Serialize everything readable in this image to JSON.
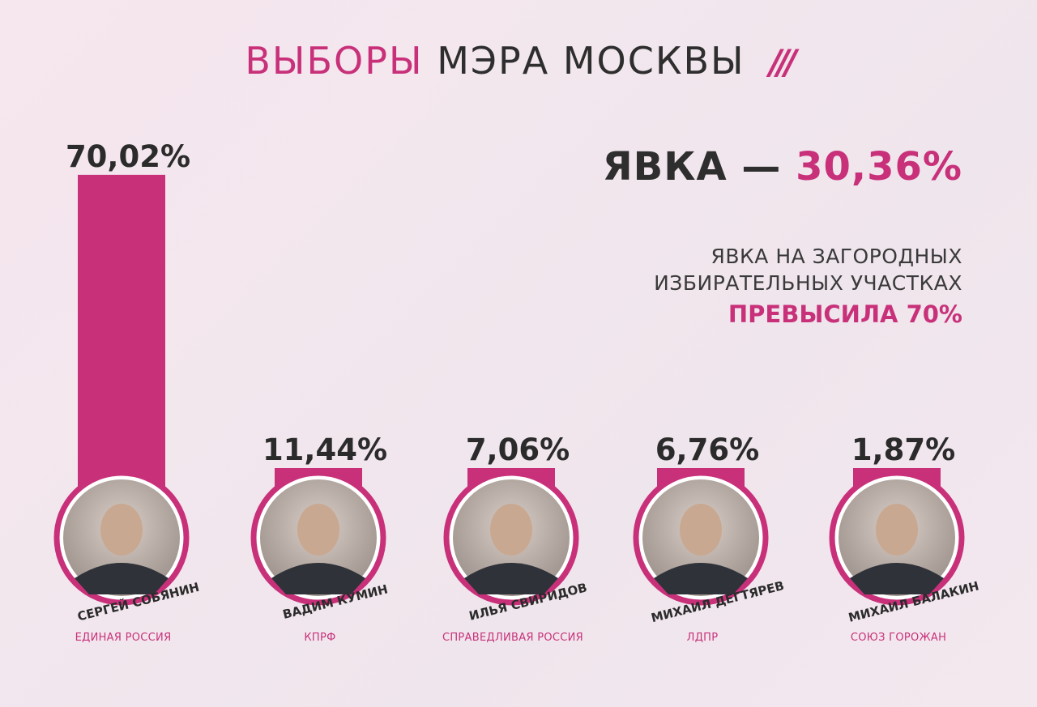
{
  "header": {
    "title_part1": "ВЫБОРЫ",
    "title_part2": "МЭРА МОСКВЫ",
    "logo_slashes": "///"
  },
  "turnout": {
    "label": "ЯВКА —",
    "value": "30,36%"
  },
  "note": {
    "line1": "ЯВКА НА ЗАГОРОДНЫХ",
    "line2": "ИЗБИРАТЕЛЬНЫХ УЧАСТКАХ",
    "highlight": "ПРЕВЫСИЛА 70%"
  },
  "colors": {
    "accent": "#c8317a",
    "text": "#2b2b2b",
    "background": "#f3e6ee"
  },
  "chart_data": {
    "type": "bar",
    "categories": [
      "СЕРГЕЙ СОБЯНИН",
      "ВАДИМ КУМИН",
      "ИЛЬЯ СВИРИДОВ",
      "МИХАИЛ ДЕГТЯРЕВ",
      "МИХАИЛ БАЛАКИН"
    ],
    "parties": [
      "ЕДИНАЯ РОССИЯ",
      "КПРФ",
      "СПРАВЕДЛИВАЯ РОССИЯ",
      "ЛДПР",
      "СОЮЗ ГОРОЖАН"
    ],
    "values": [
      70.02,
      11.44,
      7.06,
      6.76,
      1.87
    ],
    "value_labels": [
      "70,02%",
      "11,44%",
      "7,06%",
      "6,76%",
      "1,87%"
    ],
    "title": "ВЫБОРЫ МЭРА МОСКВЫ",
    "xlabel": "",
    "ylabel": "",
    "grid": false,
    "legend": "none"
  }
}
